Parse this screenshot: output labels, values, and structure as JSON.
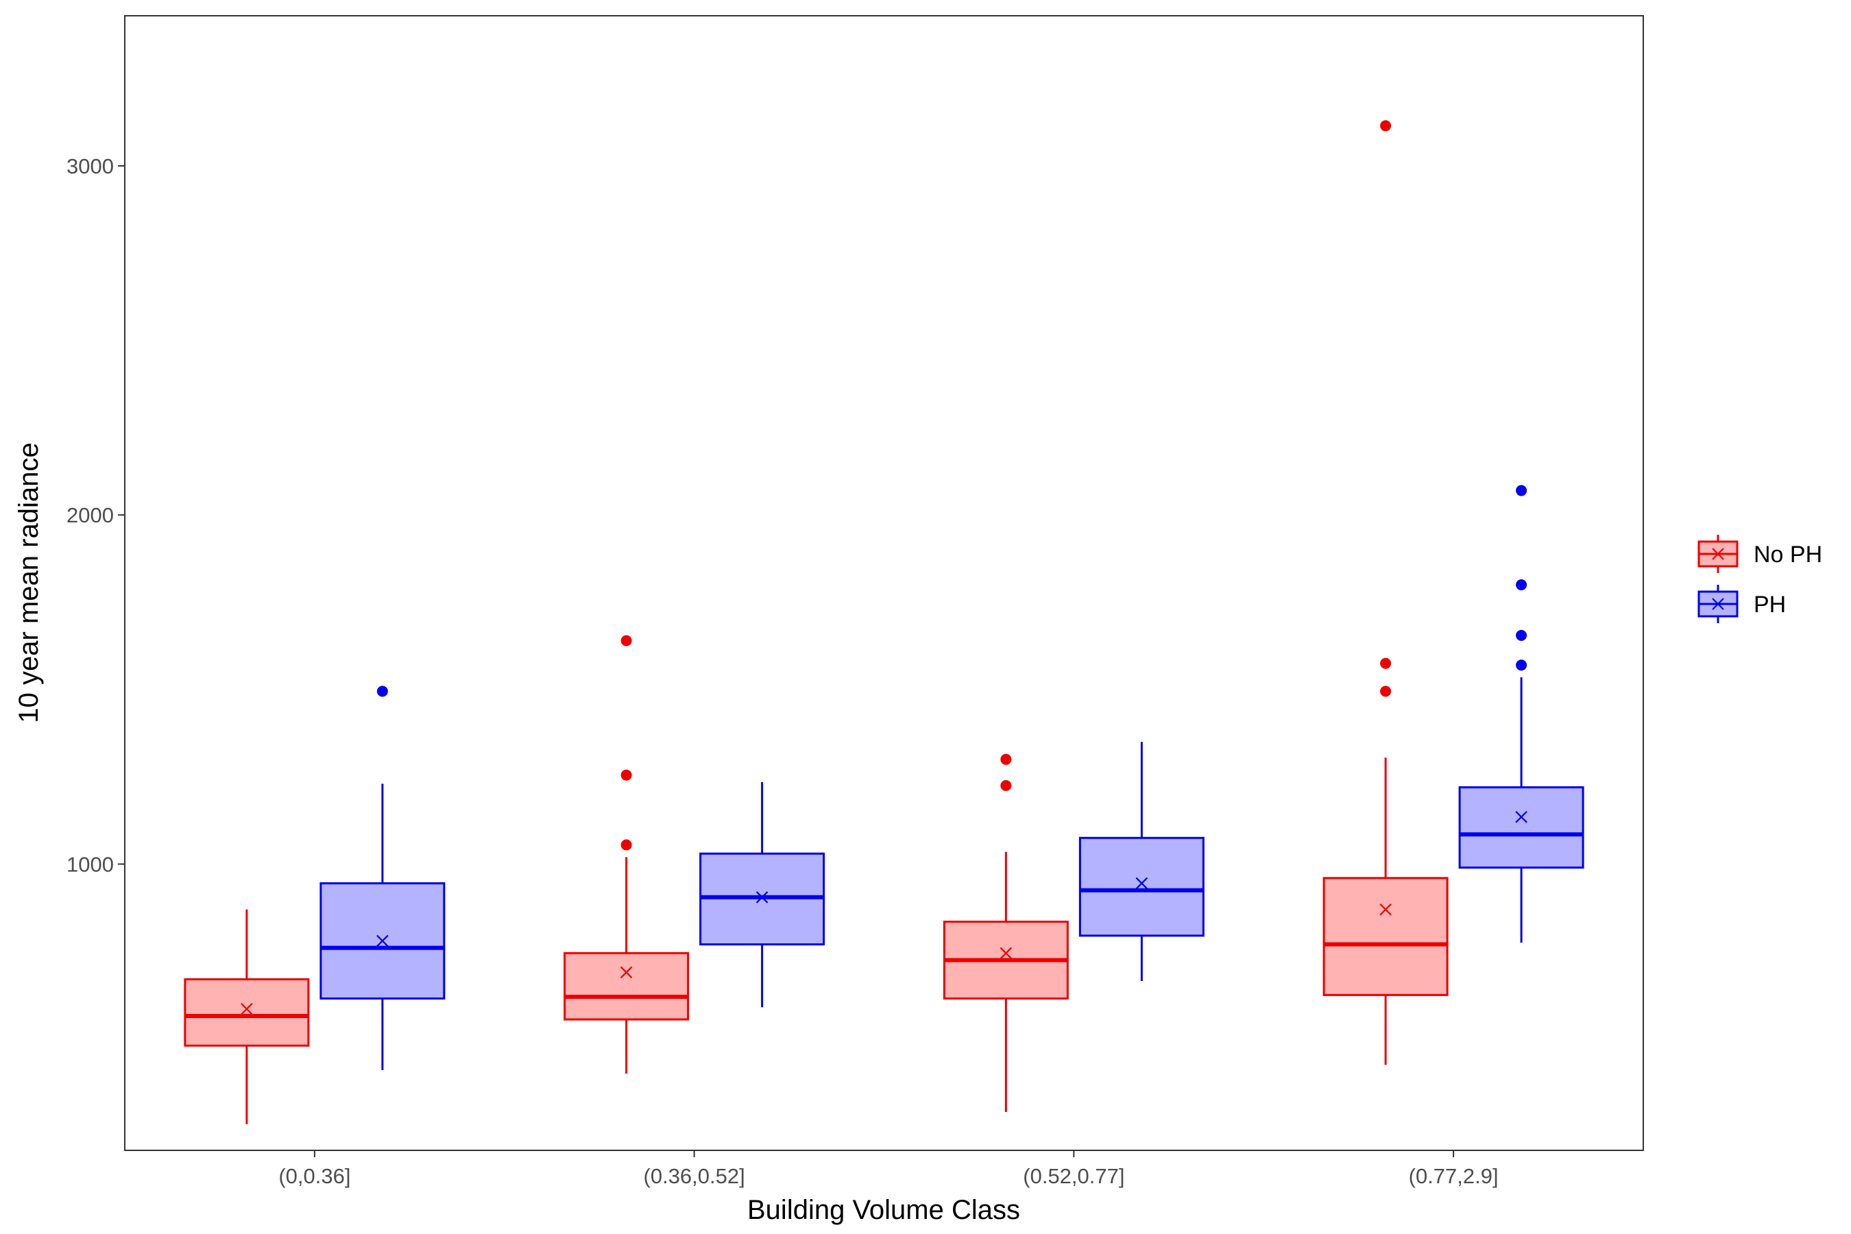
{
  "chart_data": {
    "type": "boxplot",
    "xlabel": "Building Volume Class",
    "ylabel": "10 year mean radiance",
    "ylim": [
      180,
      3430
    ],
    "yticks": [
      1000,
      2000,
      3000
    ],
    "categories": [
      "(0,0.36]",
      "(0.36,0.52]",
      "(0.52,0.77]",
      "(0.77,2.9]"
    ],
    "legend": {
      "position": "right"
    },
    "grid": false,
    "series": [
      {
        "name": "No PH",
        "line_color": "#ee0000",
        "fill_color": "#ffb3b3",
        "boxes": [
          {
            "min": 255,
            "q1": 480,
            "median": 565,
            "q3": 670,
            "max": 870,
            "mean": 585,
            "outliers": []
          },
          {
            "min": 400,
            "q1": 555,
            "median": 620,
            "q3": 745,
            "max": 1020,
            "mean": 690,
            "outliers": [
              1055,
              1255,
              1640
            ]
          },
          {
            "min": 290,
            "q1": 615,
            "median": 725,
            "q3": 835,
            "max": 1035,
            "mean": 745,
            "outliers": [
              1225,
              1300
            ]
          },
          {
            "min": 425,
            "q1": 625,
            "median": 770,
            "q3": 960,
            "max": 1305,
            "mean": 870,
            "outliers": [
              1495,
              1575,
              3115
            ]
          }
        ]
      },
      {
        "name": "PH",
        "line_color": "#0000ee",
        "fill_color": "#b3b3ff",
        "boxes": [
          {
            "min": 410,
            "q1": 615,
            "median": 760,
            "q3": 945,
            "max": 1230,
            "mean": 780,
            "outliers": [
              1495
            ]
          },
          {
            "min": 590,
            "q1": 770,
            "median": 905,
            "q3": 1030,
            "max": 1235,
            "mean": 905,
            "outliers": []
          },
          {
            "min": 665,
            "q1": 795,
            "median": 925,
            "q3": 1075,
            "max": 1350,
            "mean": 945,
            "outliers": []
          },
          {
            "min": 775,
            "q1": 990,
            "median": 1085,
            "q3": 1220,
            "max": 1535,
            "mean": 1135,
            "outliers": [
              1570,
              1655,
              1800,
              2070
            ]
          }
        ]
      }
    ]
  }
}
